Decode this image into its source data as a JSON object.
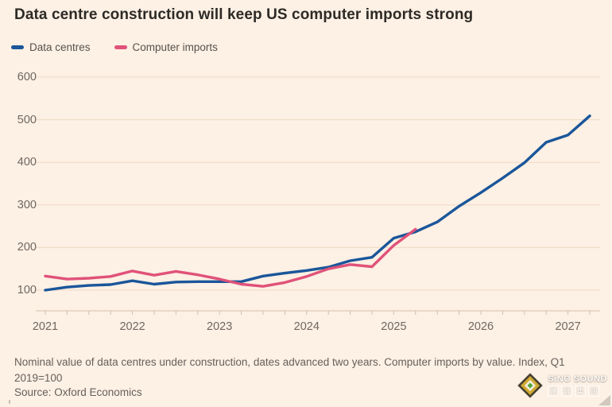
{
  "title": "Data centre construction will keep US computer imports strong",
  "legend": {
    "items": [
      {
        "label": "Data centres",
        "color": "#1a569a"
      },
      {
        "label": "Computer imports",
        "color": "#e0527a"
      }
    ]
  },
  "chart_data": {
    "type": "line",
    "title": "Data centre construction will keep US computer imports strong",
    "xlabel": "",
    "ylabel": "Index, Q1 2019=100",
    "x": [
      "2021 Q1",
      "2021 Q2",
      "2021 Q3",
      "2021 Q4",
      "2022 Q1",
      "2022 Q2",
      "2022 Q3",
      "2022 Q4",
      "2023 Q1",
      "2023 Q2",
      "2023 Q3",
      "2023 Q4",
      "2024 Q1",
      "2024 Q2",
      "2024 Q3",
      "2024 Q4",
      "2025 Q1",
      "2025 Q2",
      "2025 Q3",
      "2025 Q4",
      "2026 Q1",
      "2026 Q2",
      "2026 Q3",
      "2026 Q4",
      "2027 Q1",
      "2027 Q2"
    ],
    "series": [
      {
        "name": "Data centres",
        "color": "#1a569a",
        "values": [
          100,
          107,
          111,
          113,
          122,
          114,
          119,
          120,
          120,
          120,
          133,
          140,
          146,
          154,
          169,
          177,
          222,
          237,
          260,
          297,
          329,
          363,
          399,
          447,
          464,
          509
        ]
      },
      {
        "name": "Computer imports",
        "color": "#e0527a",
        "values": [
          133,
          126,
          128,
          132,
          145,
          135,
          144,
          136,
          126,
          114,
          109,
          118,
          132,
          150,
          160,
          155,
          205,
          243
        ]
      }
    ],
    "y_ticks": [
      100,
      200,
      300,
      400,
      500,
      600
    ],
    "x_year_labels": [
      "2021",
      "2022",
      "2023",
      "2024",
      "2025",
      "2026",
      "2027"
    ],
    "ylim": [
      60,
      620
    ],
    "grid": true,
    "legend_position": "top-left"
  },
  "footer": {
    "note": "Nominal value of data centres under construction, dates advanced two years. Computer imports by value. Index, Q1 2019=100",
    "source": "Source: Oxford Economics"
  },
  "watermark": {
    "brand": "SiNO SOUND",
    "chinese_chars": [
      "漢",
      "聲",
      "集",
      "團"
    ]
  },
  "colors": {
    "background": "#fdf0e4",
    "title_text": "#2d2a26",
    "axis_text": "#6f6862",
    "footer_text": "#66605b",
    "gridline": "#eedac7",
    "axis_line": "#d2bfae",
    "data_centres_line": "#1a569a",
    "computer_imports_line": "#e0527a"
  }
}
